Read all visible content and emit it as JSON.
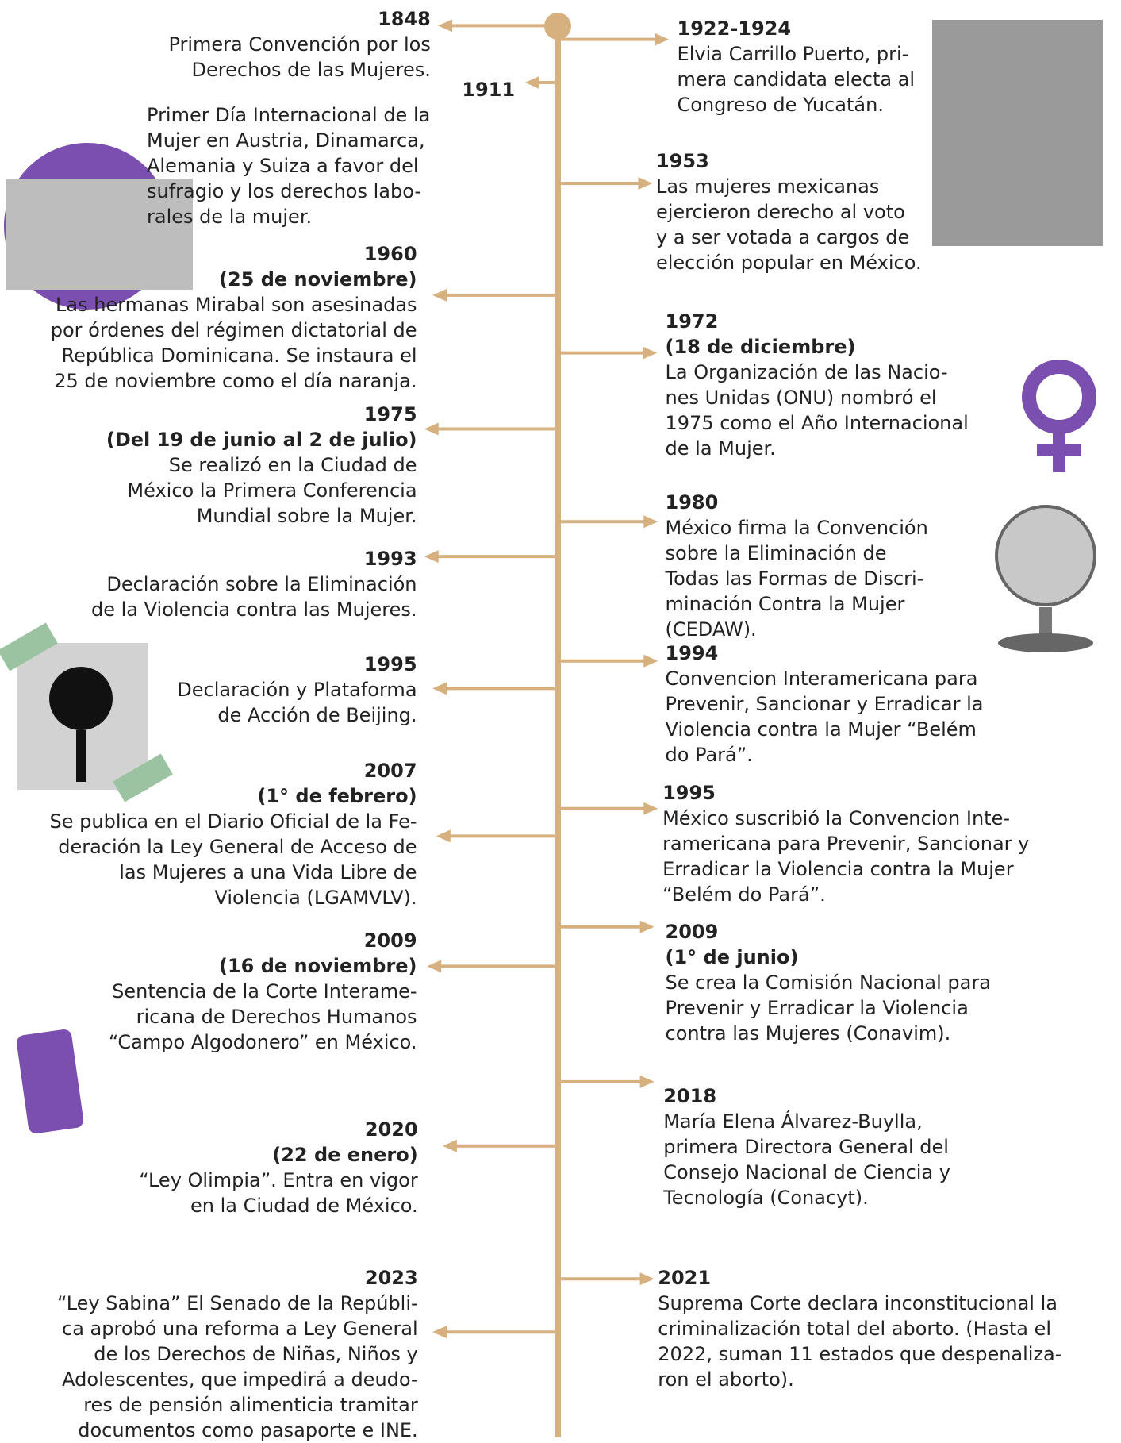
{
  "left": [
    {
      "year": "1848",
      "lines": [
        "Primera Convención por los",
        "Derechos de las Mujeres."
      ]
    },
    {
      "year": "1911",
      "lines": [
        "Primer Día Internacional de la",
        "Mujer en Austria, Dinamarca,",
        "Alemania y Suiza a favor del",
        "sufragio y los derechos labo-",
        "rales de la mujer."
      ]
    },
    {
      "year": "1960",
      "date": "(25 de noviembre)",
      "lines": [
        "Las hermanas Mirabal son asesinadas",
        "por órdenes del régimen dictatorial de",
        "República Dominicana. Se instaura el",
        "25 de noviembre como el día naranja."
      ]
    },
    {
      "year": "1975",
      "date": "(Del 19 de junio al 2 de julio)",
      "lines": [
        "Se realizó en la Ciudad de",
        "México la Primera Conferencia",
        "Mundial sobre la Mujer."
      ]
    },
    {
      "year": "1993",
      "lines": [
        "Declaración sobre la Eliminación",
        "de la Violencia contra las Mujeres."
      ]
    },
    {
      "year": "1995",
      "lines": [
        "Declaración y Plataforma",
        "de Acción de Beijing."
      ]
    },
    {
      "year": "2007",
      "date": "(1° de febrero)",
      "lines": [
        "Se publica en el Diario Oficial de la Fe-",
        "deración la Ley General de Acceso de",
        "las Mujeres a una Vida Libre de",
        "Violencia (LGAMVLV)."
      ]
    },
    {
      "year": "2009",
      "date": "(16 de noviembre)",
      "lines": [
        "Sentencia de la Corte Interame-",
        "ricana de Derechos Humanos",
        "“Campo Algodonero” en México."
      ]
    },
    {
      "year": "2020",
      "date": "(22 de enero)",
      "lines": [
        "“Ley Olimpia”. Entra en vigor",
        "en la Ciudad de México."
      ]
    },
    {
      "year": "2023",
      "lines": [
        "“Ley Sabina” El Senado de la Repúbli-",
        "ca aprobó una reforma a Ley General",
        "de los Derechos de Niñas, Niños y",
        "Adolescentes, que impedirá a deudo-",
        "res de pensión alimenticia tramitar",
        "documentos como pasaporte e INE."
      ]
    }
  ],
  "right": [
    {
      "year": "1922-1924",
      "lines": [
        "Elvia Carrillo Puerto, pri-",
        "mera candidata electa al",
        "Congreso de Yucatán."
      ]
    },
    {
      "year": "1953",
      "lines": [
        "Las mujeres mexicanas",
        "ejercieron derecho al voto",
        "y a ser votada a cargos de",
        "elección popular en México."
      ]
    },
    {
      "year": "1972",
      "date": "(18 de diciembre)",
      "lines": [
        "La Organización de las Nacio-",
        "nes Unidas (ONU) nombró el",
        "1975 como el Año Internacional",
        "de la Mujer."
      ]
    },
    {
      "year": "1980",
      "lines": [
        "México firma la Convención",
        "sobre la Eliminación de",
        "Todas las Formas de Discri-",
        "minación Contra la Mujer",
        "(CEDAW)."
      ]
    },
    {
      "year": "1994",
      "lines": [
        "Convencion Interamericana para",
        "Prevenir, Sancionar y Erradicar la",
        "Violencia contra la Mujer “Belém",
        "do Pará”."
      ]
    },
    {
      "year": "1995",
      "lines": [
        "México suscribió la Convencion Inte-",
        "ramericana para Prevenir, Sancionar y",
        "Erradicar la Violencia contra la Mujer",
        "“Belém do Pará”."
      ]
    },
    {
      "year": "2009",
      "date": "(1° de junio)",
      "lines": [
        "Se crea la Comisión Nacional para",
        "Prevenir y Erradicar la Violencia",
        "contra las Mujeres (Conavim)."
      ]
    },
    {
      "year": "2018",
      "lines": [
        "María Elena Álvarez-Buylla,",
        "primera Directora General del",
        "Consejo Nacional de Ciencia y",
        "Tecnología (Conacyt)."
      ]
    },
    {
      "year": "2021",
      "lines": [
        "Suprema Corte declara inconstitucional la",
        "criminalización total del aborto. (Hasta el",
        "2022, suman 11 estados que despenaliza-",
        "ron el aborto)."
      ]
    }
  ]
}
